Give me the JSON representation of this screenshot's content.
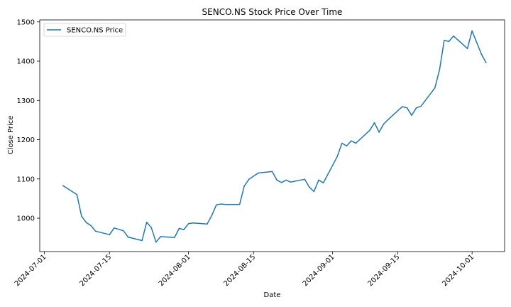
{
  "chart_data": {
    "type": "line",
    "title": "SENCO.NS Stock Price Over Time",
    "xlabel": "Date",
    "ylabel": "Close Price",
    "x_ticks": [
      "2024-07-01",
      "2024-07-15",
      "2024-08-01",
      "2024-08-15",
      "2024-09-01",
      "2024-09-15",
      "2024-10-01"
    ],
    "y_ticks": [
      "1000",
      "1100",
      "1200",
      "1300",
      "1400",
      "1500"
    ],
    "xlim": [
      "2024-06-30",
      "2024-10-08"
    ],
    "ylim": [
      915,
      1505
    ],
    "grid": false,
    "legend_position": "top-left",
    "series": [
      {
        "name": "SENCO.NS Price",
        "color": "#1f77b4",
        "x": [
          "2024-07-05",
          "2024-07-08",
          "2024-07-09",
          "2024-07-10",
          "2024-07-11",
          "2024-07-12",
          "2024-07-15",
          "2024-07-16",
          "2024-07-18",
          "2024-07-19",
          "2024-07-22",
          "2024-07-23",
          "2024-07-24",
          "2024-07-25",
          "2024-07-26",
          "2024-07-29",
          "2024-07-30",
          "2024-07-31",
          "2024-08-01",
          "2024-08-02",
          "2024-08-05",
          "2024-08-06",
          "2024-08-07",
          "2024-08-08",
          "2024-08-09",
          "2024-08-12",
          "2024-08-13",
          "2024-08-14",
          "2024-08-16",
          "2024-08-19",
          "2024-08-20",
          "2024-08-21",
          "2024-08-22",
          "2024-08-23",
          "2024-08-26",
          "2024-08-27",
          "2024-08-28",
          "2024-08-29",
          "2024-08-30",
          "2024-09-02",
          "2024-09-03",
          "2024-09-04",
          "2024-09-05",
          "2024-09-06",
          "2024-09-09",
          "2024-09-10",
          "2024-09-11",
          "2024-09-12",
          "2024-09-13",
          "2024-09-16",
          "2024-09-17",
          "2024-09-18",
          "2024-09-19",
          "2024-09-20",
          "2024-09-23",
          "2024-09-24",
          "2024-09-25",
          "2024-09-26",
          "2024-09-27",
          "2024-09-30",
          "2024-10-01",
          "2024-10-03",
          "2024-10-04"
        ],
        "values": [
          1083,
          1060,
          1005,
          989,
          981,
          967,
          958,
          975,
          968,
          952,
          943,
          990,
          976,
          939,
          953,
          951,
          974,
          971,
          986,
          988,
          985,
          1007,
          1034,
          1036,
          1035,
          1035,
          1082,
          1099,
          1115,
          1119,
          1097,
          1091,
          1097,
          1092,
          1099,
          1079,
          1068,
          1097,
          1090,
          1157,
          1191,
          1184,
          1197,
          1191,
          1224,
          1243,
          1219,
          1240,
          1252,
          1284,
          1281,
          1262,
          1281,
          1285,
          1332,
          1378,
          1453,
          1450,
          1464,
          1432,
          1477,
          1418,
          1396
        ]
      }
    ]
  }
}
